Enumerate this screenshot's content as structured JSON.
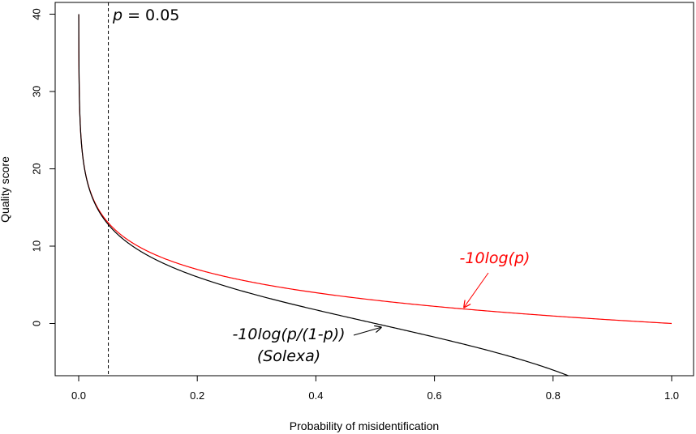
{
  "chart_data": {
    "type": "line",
    "title": "",
    "xlabel": "Probability of misidentification",
    "ylabel": "Quality score",
    "xlim": [
      0.0,
      1.0
    ],
    "ylim": [
      -6.8,
      40.0
    ],
    "xticks": [
      "0.0",
      "0.2",
      "0.4",
      "0.6",
      "0.8",
      "1.0"
    ],
    "yticks": [
      "0",
      "10",
      "20",
      "30",
      "40"
    ],
    "grid": false,
    "series": [
      {
        "name": "-10log(p)",
        "color": "#ff0000",
        "x": [
          0.0001,
          0.0005,
          0.001,
          0.002,
          0.005,
          0.01,
          0.02,
          0.03,
          0.05,
          0.07,
          0.1,
          0.15,
          0.2,
          0.3,
          0.4,
          0.5,
          0.6,
          0.7,
          0.8,
          0.9,
          1.0
        ],
        "y": [
          40.0,
          33.0,
          30.0,
          27.0,
          23.0,
          20.0,
          17.0,
          15.2,
          13.0,
          11.5,
          10.0,
          8.2,
          7.0,
          5.2,
          4.0,
          3.0,
          2.2,
          1.5,
          1.0,
          0.5,
          0.0
        ]
      },
      {
        "name": "-10log(p/(1-p))",
        "color": "#000000",
        "x": [
          0.0001,
          0.0005,
          0.001,
          0.002,
          0.005,
          0.01,
          0.02,
          0.03,
          0.05,
          0.07,
          0.1,
          0.15,
          0.2,
          0.3,
          0.4,
          0.5,
          0.6,
          0.7,
          0.8,
          0.826
        ],
        "y": [
          40.0,
          33.0,
          30.0,
          27.0,
          23.0,
          20.0,
          16.9,
          15.1,
          12.8,
          11.2,
          9.5,
          7.5,
          6.0,
          3.7,
          1.8,
          0.0,
          -1.8,
          -3.7,
          -6.0,
          -6.8
        ]
      }
    ],
    "reference_line": {
      "x": 0.05,
      "style": "dashed",
      "label_var": "p",
      "label_rest": " = 0.05"
    },
    "annotations": [
      {
        "text": "-10log(p)",
        "color": "#ff0000",
        "arrow_to": [
          0.65,
          2.1
        ]
      },
      {
        "text": "-10log(p/(1-p))",
        "text2": "(Solexa)",
        "color": "#000000",
        "arrow_to": [
          0.51,
          -0.5
        ]
      }
    ]
  }
}
